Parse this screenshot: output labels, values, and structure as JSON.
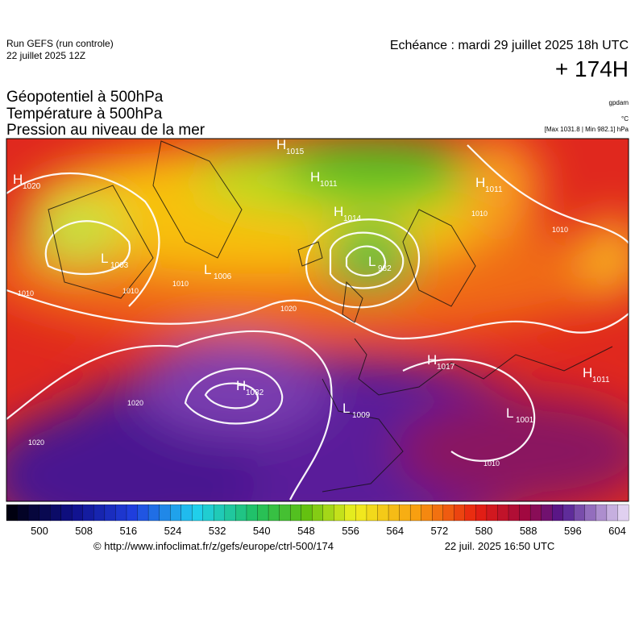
{
  "header": {
    "run": "Run GEFS (run controle)",
    "date": "22 juillet 2025 12Z",
    "echeance": "Echéance : mardi 29 juillet 2025 18h UTC",
    "lead": "+ 174H",
    "fields": [
      "Géopotentiel à 500hPa",
      "Température à 500hPa",
      "Pression au niveau de la mer"
    ],
    "units": [
      "gpdam",
      "°C",
      "[Max 1031.8 | Min 982.1] hPa"
    ]
  },
  "map": {
    "centers": [
      {
        "kind": "H",
        "value": "1015"
      },
      {
        "kind": "H",
        "value": "1011"
      },
      {
        "kind": "H",
        "value": "1014"
      },
      {
        "kind": "H",
        "value": "1011"
      },
      {
        "kind": "L",
        "value": "982"
      },
      {
        "kind": "L",
        "value": "1003"
      },
      {
        "kind": "L",
        "value": "1006"
      },
      {
        "kind": "H",
        "value": "1032"
      },
      {
        "kind": "L",
        "value": "1009"
      },
      {
        "kind": "H",
        "value": "1017"
      },
      {
        "kind": "L",
        "value": "1001"
      },
      {
        "kind": "H",
        "value": "1011"
      },
      {
        "kind": "H",
        "value": "1020"
      }
    ],
    "isobar_labels": [
      "1010",
      "1010",
      "1020",
      "1020",
      "1020",
      "1010",
      "1010",
      "1010",
      "1010"
    ]
  },
  "colorbar": {
    "ticks": [
      500,
      508,
      516,
      524,
      532,
      540,
      548,
      556,
      564,
      572,
      580,
      588,
      596,
      604
    ]
  },
  "footer": {
    "source": "© http://www.infoclimat.fr/z/gefs/europe/ctrl-500/174",
    "issued": "22 juil. 2025 16:50 UTC"
  }
}
